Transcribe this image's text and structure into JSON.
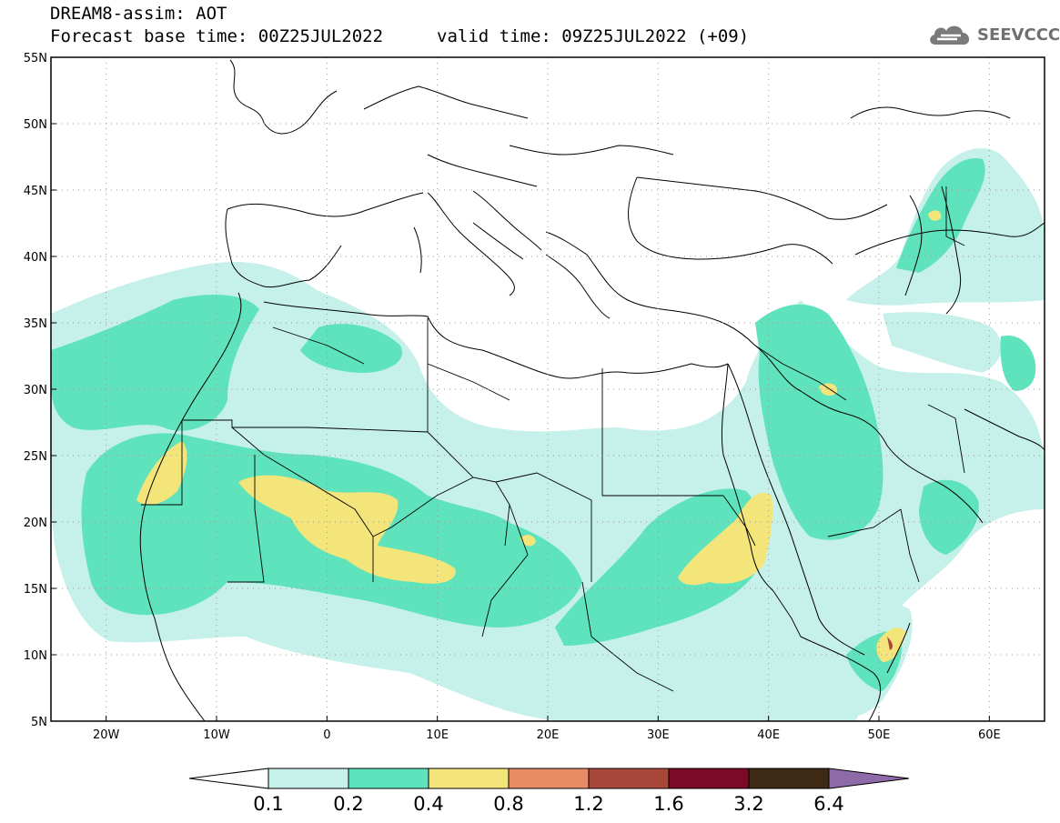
{
  "header": {
    "title": "DREAM8-assim: AOT",
    "base_time": "Forecast base time: 00Z25JUL2022",
    "valid_time": "valid time: 09Z25JUL2022 (+09)"
  },
  "logo": {
    "text": "SEEVCCC",
    "icon": "cloud-icon"
  },
  "map": {
    "lon_range": [
      -25,
      65
    ],
    "lat_range": [
      5,
      55
    ],
    "lon_ticks": [
      "20W",
      "10W",
      "0",
      "10E",
      "20E",
      "30E",
      "40E",
      "50E",
      "60E"
    ],
    "lat_ticks": [
      "55N",
      "50N",
      "45N",
      "40N",
      "35N",
      "30N",
      "25N",
      "20N",
      "15N",
      "10N",
      "5N"
    ]
  },
  "colorbar": {
    "labels": [
      "0.1",
      "0.2",
      "0.4",
      "0.8",
      "1.2",
      "1.6",
      "3.2",
      "6.4"
    ],
    "colors": [
      "#ffffff",
      "#c6f0ea",
      "#5ee3bc",
      "#f4e57a",
      "#e88c66",
      "#a8483a",
      "#7a0a28",
      "#3e2a14",
      "#8f6aa8"
    ]
  }
}
